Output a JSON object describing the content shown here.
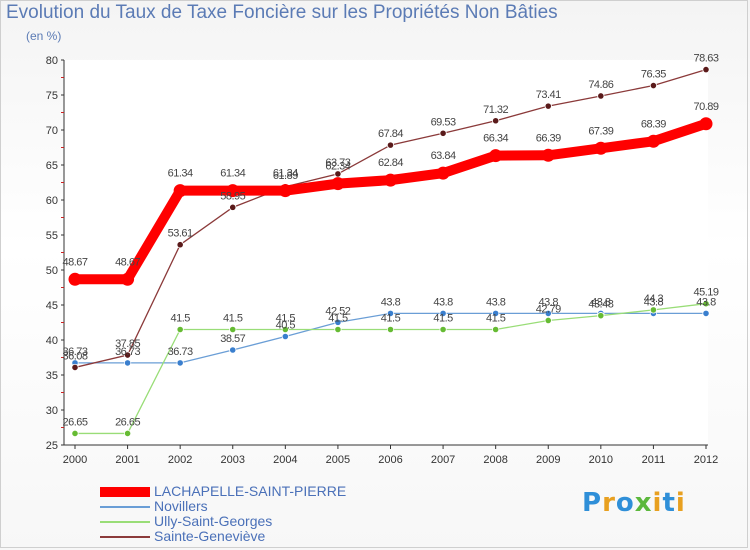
{
  "page": {
    "title": "Evolution du Taux de Taxe Foncière sur les Propriétés Non Bâties",
    "unit": "(en %)",
    "logo": "Proxiti"
  },
  "chart_data": {
    "type": "line",
    "title": "Evolution du Taux de Taxe Foncière sur les Propriétés Non Bâties",
    "ylabel": "(en %)",
    "xlabel": "",
    "categories": [
      "2000",
      "2001",
      "2002",
      "2003",
      "2004",
      "2005",
      "2006",
      "2007",
      "2008",
      "2009",
      "2010",
      "2011",
      "2012"
    ],
    "ylim": [
      25,
      80
    ],
    "yticks": [
      25,
      30,
      35,
      40,
      45,
      50,
      55,
      60,
      65,
      70,
      75,
      80
    ],
    "grid": false,
    "legend_position": "bottom-left",
    "series": [
      {
        "name": "LACHAPELLE-SAINT-PIERRE",
        "color": "#ff0000",
        "emphasis": true,
        "values": [
          48.67,
          48.67,
          61.34,
          61.34,
          61.34,
          62.34,
          62.84,
          63.84,
          66.34,
          66.39,
          67.39,
          68.39,
          70.89
        ],
        "labels": [
          "48.67",
          "48.67",
          "61.34",
          "61.34",
          "61.34",
          "62.34",
          "62.84",
          "63.84",
          "66.34",
          "66.39",
          "67.39",
          "68.39",
          "70.89"
        ]
      },
      {
        "name": "Novillers",
        "color": "#6a9ed6",
        "marker": "#3a7fce",
        "values": [
          36.73,
          36.73,
          36.73,
          38.57,
          40.5,
          42.52,
          43.8,
          43.8,
          43.8,
          43.8,
          43.8,
          43.8,
          43.8
        ],
        "labels": [
          "36.73",
          "36.73",
          "36.73",
          "38.57",
          "40.5",
          "42.52",
          "43.8",
          "43.8",
          "43.8",
          "43.8",
          "43.8",
          "43.8",
          "43.8"
        ]
      },
      {
        "name": "Ully-Saint-Georges",
        "color": "#99dd77",
        "marker": "#66bb33",
        "values": [
          26.65,
          26.65,
          41.5,
          41.5,
          41.5,
          41.5,
          41.5,
          41.5,
          41.5,
          42.79,
          43.48,
          44.3,
          45.19
        ],
        "labels": [
          "26.65",
          "26.65",
          "41.5",
          "41.5",
          "41.5",
          "41.5",
          "41.5",
          "41.5",
          "41.5",
          "42.79",
          "43.48",
          "44.3",
          "45.19"
        ]
      },
      {
        "name": "Sainte-Geneviève",
        "color": "#8b3a3a",
        "marker": "#5a1a1a",
        "values": [
          36.08,
          37.85,
          53.61,
          58.95,
          61.89,
          63.73,
          67.84,
          69.53,
          71.32,
          73.41,
          74.86,
          76.35,
          78.63
        ],
        "labels": [
          "36.08",
          "37.85",
          "53.61",
          "58.95",
          "61.89",
          "63.73",
          "67.84",
          "69.53",
          "71.32",
          "73.41",
          "74.86",
          "76.35",
          "78.63"
        ]
      }
    ]
  }
}
